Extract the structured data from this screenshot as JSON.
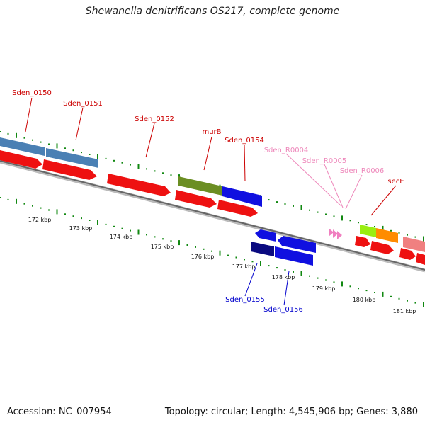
{
  "title": "Shewanella denitrificans OS217, complete genome",
  "accession": "Accession: NC_007954",
  "summary": "Topology: circular; Length: 4,545,906 bp; Genes: 3,880",
  "colors": {
    "gene_red": "#ee1111",
    "gene_steelblue": "#4a80b4",
    "gene_olive": "#6b8e23",
    "gene_blue": "#1010e0",
    "gene_navy": "#0a0a80",
    "gene_limegreen": "#99ee11",
    "gene_orange": "#ff8c00",
    "gene_salmon": "#f08080",
    "rna_pink": "#f080c0",
    "label_red": "#cc0000",
    "label_pink": "#ee88bb",
    "label_blue": "#0000cc",
    "tick_green": "#118811",
    "backbone_gray": "#888888"
  },
  "genes": [
    {
      "name": "Sden_0150",
      "color_key": "label_red"
    },
    {
      "name": "Sden_0151",
      "color_key": "label_red"
    },
    {
      "name": "Sden_0152",
      "color_key": "label_red"
    },
    {
      "name": "murB",
      "color_key": "label_red"
    },
    {
      "name": "Sden_0154",
      "color_key": "label_red"
    },
    {
      "name": "Sden_R0004",
      "color_key": "label_pink"
    },
    {
      "name": "Sden_R0005",
      "color_key": "label_pink"
    },
    {
      "name": "Sden_R0006",
      "color_key": "label_pink"
    },
    {
      "name": "secE",
      "color_key": "label_red"
    },
    {
      "name": "Sden_0155",
      "color_key": "label_blue"
    },
    {
      "name": "Sden_0156",
      "color_key": "label_blue"
    }
  ],
  "scale_ticks": [
    "172 kbp",
    "173 kbp",
    "174 kbp",
    "175 kbp",
    "176 kbp",
    "177 kbp",
    "178 kbp",
    "179 kbp",
    "180 kbp",
    "181 kbp"
  ]
}
